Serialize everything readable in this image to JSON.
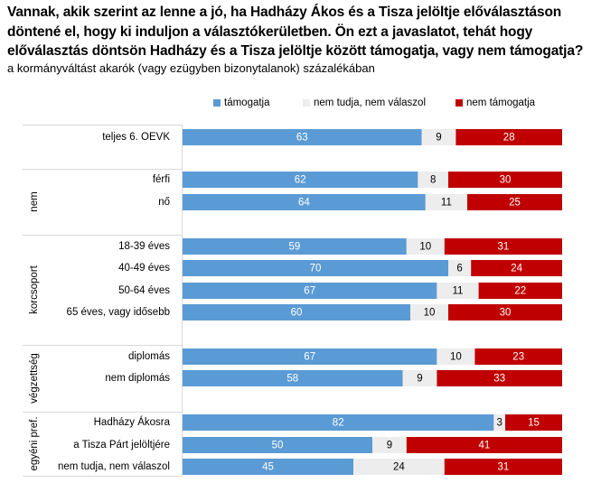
{
  "title": "Vannak, akik szerint az lenne a jó, ha Hadházy Ákos és a Tisza jelöltje előválasztáson döntené el, hogy ki induljon a választókerületben. Ön ezt a javaslatot, tehát hogy előválasztás döntsön Hadházy és a Tisza jelöltje között támogatja, vagy nem támogatja?",
  "subtitle": "a kormányváltást akarók (vagy ezügyben bizonytalanok) százalékában",
  "colors": {
    "support": "#5b9bd5",
    "dontknow": "#ededed",
    "oppose": "#c00000",
    "separator": "#d9d9d9",
    "label_light": "#ffffff",
    "label_dark": "#000000"
  },
  "chart_data": {
    "type": "bar",
    "orientation": "horizontal",
    "stacked": true,
    "title": "Vannak, akik szerint az lenne a jó, ha Hadházy Ákos és a Tisza jelöltje előválasztáson döntené el, hogy ki induljon a választókerületben. Ön ezt a javaslatot, tehát hogy előválasztás döntsön Hadházy és a Tisza jelöltje között támogatja, vagy nem támogatja?",
    "subtitle": "a kormányváltást akarók (vagy ezügyben bizonytalanok) százalékában",
    "xlabel": "",
    "ylabel": "",
    "xlim": [
      0,
      100
    ],
    "grid": false,
    "legend_position": "top",
    "groups": [
      {
        "name": "",
        "categories": [
          "teljes 6. OEVK"
        ]
      },
      {
        "name": "nem",
        "categories": [
          "férfi",
          "nő"
        ]
      },
      {
        "name": "korcsoport",
        "categories": [
          "18-39 éves",
          "40-49 éves",
          "50-64 éves",
          "65 éves, vagy idősebb"
        ]
      },
      {
        "name": "végzettség",
        "categories": [
          "diplomás",
          "nem diplomás"
        ]
      },
      {
        "name": "egyéni pref.",
        "categories": [
          "Hadházy Ákosra",
          "a Tisza Párt jelöltjére",
          "nem tudja, nem válaszol"
        ]
      }
    ],
    "categories": [
      "teljes 6. OEVK",
      "férfi",
      "nő",
      "18-39 éves",
      "40-49 éves",
      "50-64 éves",
      "65 éves, vagy idősebb",
      "diplomás",
      "nem diplomás",
      "Hadházy Ákosra",
      "a Tisza Párt jelöltjére",
      "nem tudja, nem válaszol"
    ],
    "series": [
      {
        "name": "támogatja",
        "color": "#5b9bd5",
        "values": [
          63,
          62,
          64,
          59,
          70,
          67,
          60,
          67,
          58,
          82,
          50,
          45
        ]
      },
      {
        "name": "nem tudja, nem válaszol",
        "color": "#ededed",
        "values": [
          9,
          8,
          11,
          10,
          6,
          11,
          10,
          10,
          9,
          3,
          9,
          24
        ]
      },
      {
        "name": "nem támogatja",
        "color": "#c00000",
        "values": [
          28,
          30,
          25,
          31,
          24,
          22,
          30,
          23,
          33,
          15,
          41,
          31
        ]
      }
    ]
  }
}
